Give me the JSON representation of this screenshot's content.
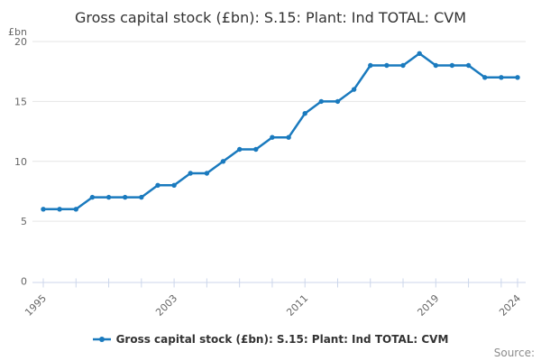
{
  "title": "Gross capital stock (£bn): S.15: Plant: Ind TOTAL: CVM",
  "y_axis_unit": "£bn",
  "source_label": "Source:",
  "legend": {
    "label": "Gross capital stock (£bn): S.15: Plant: Ind TOTAL: CVM"
  },
  "colors": {
    "series": "#1a7abe",
    "grid": "#e6e6e6",
    "axis_line": "#ccd6eb",
    "title_text": "#333333",
    "axis_text": "#666666",
    "source_text": "#8c8c8c"
  },
  "chart_data": {
    "type": "line",
    "title": "Gross capital stock (£bn): S.15: Plant: Ind TOTAL: CVM",
    "xlabel": "",
    "ylabel": "£bn",
    "ylim": [
      0,
      20
    ],
    "y_ticks": [
      0,
      5,
      10,
      15,
      20
    ],
    "x": [
      1995,
      1996,
      1997,
      1998,
      1999,
      2000,
      2001,
      2002,
      2003,
      2004,
      2005,
      2006,
      2007,
      2008,
      2009,
      2010,
      2011,
      2012,
      2013,
      2014,
      2015,
      2016,
      2017,
      2018,
      2019,
      2020,
      2021,
      2022,
      2023,
      2024
    ],
    "series": [
      {
        "name": "Gross capital stock (£bn): S.15: Plant: Ind TOTAL: CVM",
        "values": [
          6,
          6,
          6,
          7,
          7,
          7,
          7,
          8,
          8,
          9,
          9,
          10,
          11,
          11,
          12,
          12,
          14,
          15,
          15,
          16,
          18,
          18,
          18,
          19,
          18,
          18,
          18,
          17,
          17,
          17
        ]
      }
    ],
    "x_ticks": [
      1995,
      1997,
      1999,
      2001,
      2003,
      2005,
      2007,
      2009,
      2011,
      2013,
      2015,
      2017,
      2019,
      2021,
      2023,
      2024
    ],
    "x_labeled_ticks": [
      1995,
      2003,
      2011,
      2019,
      2024
    ],
    "grid": "horizontal",
    "legend_position": "bottom",
    "markers": true
  }
}
